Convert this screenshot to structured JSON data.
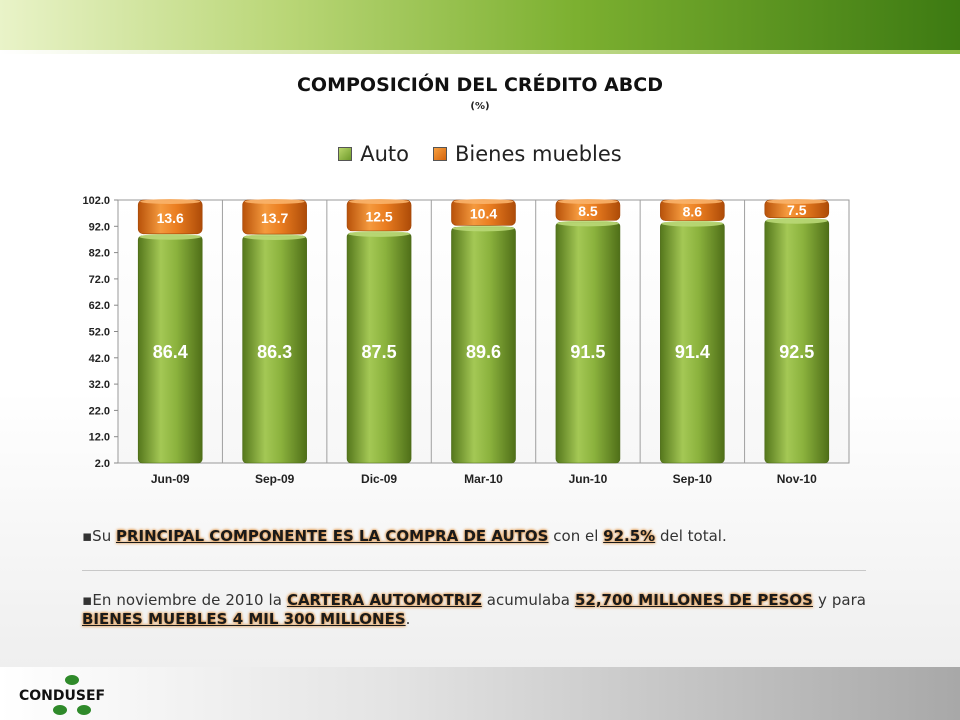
{
  "title": "COMPOSICIÓN DEL CRÉDITO ABCD",
  "subtitle": "(%)",
  "legend": [
    {
      "label": "Auto",
      "color": "#7ea834"
    },
    {
      "label": "Bienes muebles",
      "color": "#e8781c"
    }
  ],
  "chart_data": {
    "type": "bar",
    "stacked": true,
    "categories": [
      "Jun-09",
      "Sep-09",
      "Dic-09",
      "Mar-10",
      "Jun-10",
      "Sep-10",
      "Nov-10"
    ],
    "series": [
      {
        "name": "Auto",
        "values": [
          86.4,
          86.3,
          87.5,
          89.6,
          91.5,
          91.4,
          92.5
        ],
        "labels": [
          "86.4",
          "86.3",
          "87.5",
          "89.6",
          "91.5",
          "91.4",
          "92.5"
        ]
      },
      {
        "name": "Bienes muebles",
        "values": [
          13.6,
          13.7,
          12.5,
          10.4,
          8.5,
          8.6,
          7.5
        ],
        "labels": [
          "13.6",
          "13.7",
          "12.5",
          "10.4",
          "8.5",
          "8.6",
          "7.5"
        ]
      }
    ],
    "ylim": [
      2.0,
      102.0
    ],
    "yticks": [
      "102.0",
      "92.0",
      "82.0",
      "72.0",
      "62.0",
      "52.0",
      "42.0",
      "32.0",
      "22.0",
      "12.0",
      "2.0"
    ],
    "grid": false,
    "legend_position": "top-center"
  },
  "bullets": {
    "b1": {
      "pre": "Su ",
      "h1": "PRINCIPAL COMPONENTE ES LA COMPRA DE AUTOS",
      "mid": " con el ",
      "h2": "92.5%",
      "post": " del total."
    },
    "b2": {
      "pre": "En noviembre de 2010 la ",
      "h1": "CARTERA AUTOMOTRIZ",
      "mid1": " acumulaba ",
      "h2": "52,700 MILLONES DE PESOS",
      "mid2": " y para ",
      "h3": "BIENES MUEBLES 4 MIL 300 MILLONES",
      "post": "."
    }
  },
  "footer": {
    "logo_text": "CONDUSEF"
  }
}
